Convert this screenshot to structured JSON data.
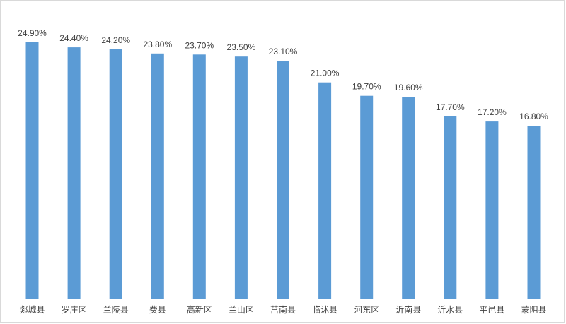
{
  "chart_data": {
    "type": "bar",
    "categories": [
      "郯城县",
      "罗庄区",
      "兰陵县",
      "费县",
      "高新区",
      "兰山区",
      "莒南县",
      "临沭县",
      "河东区",
      "沂南县",
      "沂水县",
      "平邑县",
      "蒙阴县"
    ],
    "values": [
      24.9,
      24.4,
      24.2,
      23.8,
      23.7,
      23.5,
      23.1,
      21.0,
      19.7,
      19.6,
      17.7,
      17.2,
      16.8
    ],
    "value_labels": [
      "24.90%",
      "24.40%",
      "24.20%",
      "23.80%",
      "23.70%",
      "23.50%",
      "23.10%",
      "21.00%",
      "19.70%",
      "19.60%",
      "17.70%",
      "17.20%",
      "16.80%"
    ],
    "title": "",
    "xlabel": "",
    "ylabel": "",
    "ylim": [
      0,
      29
    ],
    "grid": false,
    "legend": "none",
    "bar_color": "#5b9bd5"
  }
}
